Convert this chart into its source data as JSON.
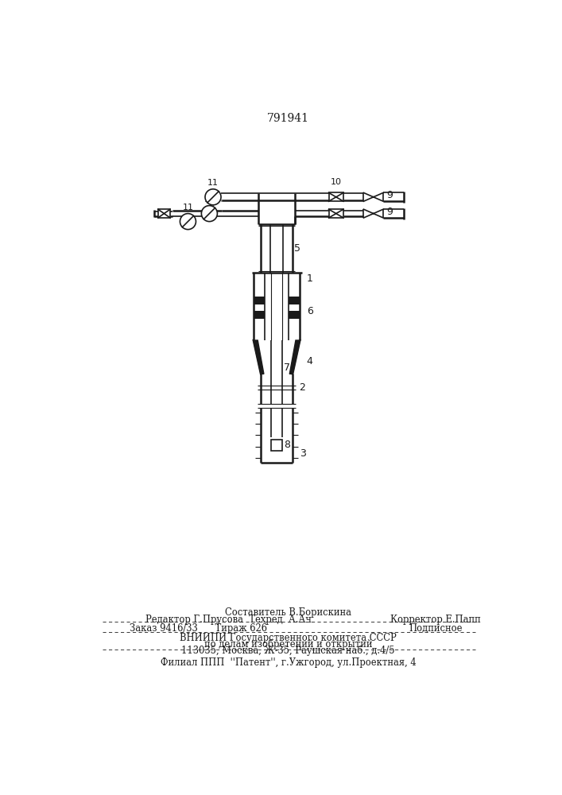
{
  "patent_number": "791941",
  "bg_color": "#ffffff",
  "line_color": "#1a1a1a",
  "footer": {
    "line1": "Составитель В.Борискина",
    "line2a": "Редактор Г.Прусова  Техред  А.Ач",
    "line2b": "Корректор Е.Папп",
    "line3a": "Заказ 9416/33      Тираж 626",
    "line3b": "Подписное",
    "line4": "ВНИИПИ Государственного комитета СССР",
    "line5": "по делам изобретений и открытий",
    "line6": "113035, Москва, Ж-35, Раушская наб., д.4/5",
    "line7": "Филиал ППП  ''Патент'', г.Ужгород, ул.Проектная, 4"
  }
}
